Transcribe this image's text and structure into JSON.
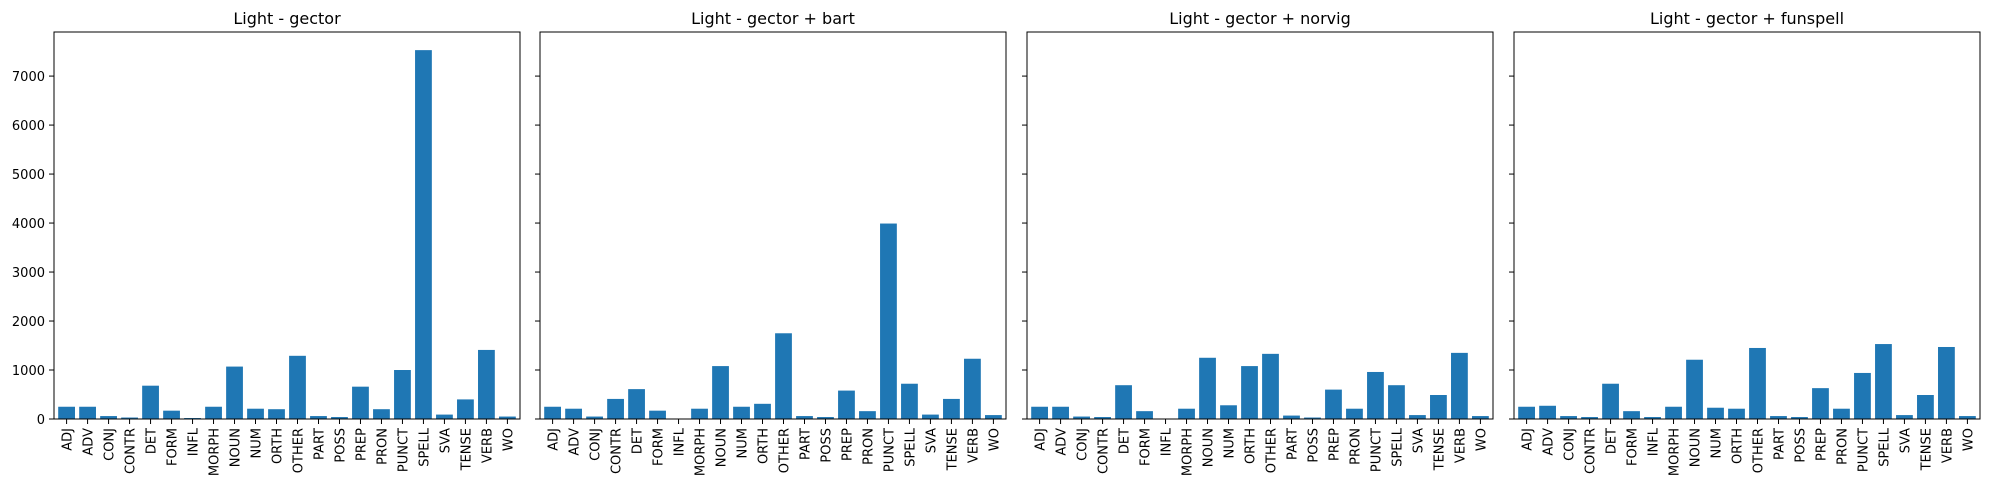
{
  "chart_data": [
    {
      "type": "bar",
      "title": "Light - gector",
      "categories": [
        "ADJ",
        "ADV",
        "CONJ",
        "CONTR",
        "DET",
        "FORM",
        "INFL",
        "MORPH",
        "NOUN",
        "NUM",
        "ORTH",
        "OTHER",
        "PART",
        "POSS",
        "PREP",
        "PRON",
        "PUNCT",
        "SPELL",
        "SVA",
        "TENSE",
        "VERB",
        "WO"
      ],
      "values": [
        250,
        250,
        60,
        30,
        680,
        170,
        20,
        250,
        1070,
        210,
        200,
        1290,
        60,
        40,
        660,
        200,
        1000,
        7530,
        90,
        400,
        1410,
        50
      ],
      "yticks": [
        0,
        1000,
        2000,
        3000,
        4000,
        5000,
        6000,
        7000
      ],
      "ylim": [
        0,
        7900
      ],
      "color": "#1f77b4"
    },
    {
      "type": "bar",
      "title": "Light - gector + bart",
      "categories": [
        "ADJ",
        "ADV",
        "CONJ",
        "CONTR",
        "DET",
        "FORM",
        "INFL",
        "MORPH",
        "NOUN",
        "NUM",
        "ORTH",
        "OTHER",
        "PART",
        "POSS",
        "PREP",
        "PRON",
        "PUNCT",
        "SPELL",
        "SVA",
        "TENSE",
        "VERB",
        "WO"
      ],
      "values": [
        250,
        210,
        50,
        410,
        610,
        170,
        10,
        210,
        1080,
        250,
        310,
        1750,
        60,
        40,
        580,
        160,
        3990,
        720,
        90,
        410,
        1230,
        80
      ],
      "ylim": [
        0,
        7900
      ],
      "color": "#1f77b4"
    },
    {
      "type": "bar",
      "title": "Light - gector + norvig",
      "categories": [
        "ADJ",
        "ADV",
        "CONJ",
        "CONTR",
        "DET",
        "FORM",
        "INFL",
        "MORPH",
        "NOUN",
        "NUM",
        "ORTH",
        "OTHER",
        "PART",
        "POSS",
        "PREP",
        "PRON",
        "PUNCT",
        "SPELL",
        "SVA",
        "TENSE",
        "VERB",
        "WO"
      ],
      "values": [
        250,
        250,
        50,
        40,
        690,
        160,
        10,
        210,
        1250,
        280,
        1080,
        1330,
        70,
        30,
        600,
        210,
        960,
        690,
        80,
        490,
        1350,
        60
      ],
      "ylim": [
        0,
        7900
      ],
      "color": "#1f77b4"
    },
    {
      "type": "bar",
      "title": "Light - gector + funspell",
      "categories": [
        "ADJ",
        "ADV",
        "CONJ",
        "CONTR",
        "DET",
        "FORM",
        "INFL",
        "MORPH",
        "NOUN",
        "NUM",
        "ORTH",
        "OTHER",
        "PART",
        "POSS",
        "PREP",
        "PRON",
        "PUNCT",
        "SPELL",
        "SVA",
        "TENSE",
        "VERB",
        "WO"
      ],
      "values": [
        250,
        270,
        60,
        40,
        720,
        160,
        40,
        250,
        1210,
        230,
        210,
        1450,
        60,
        40,
        630,
        210,
        940,
        1530,
        80,
        490,
        1470,
        60
      ],
      "ylim": [
        0,
        7900
      ],
      "color": "#1f77b4"
    }
  ]
}
